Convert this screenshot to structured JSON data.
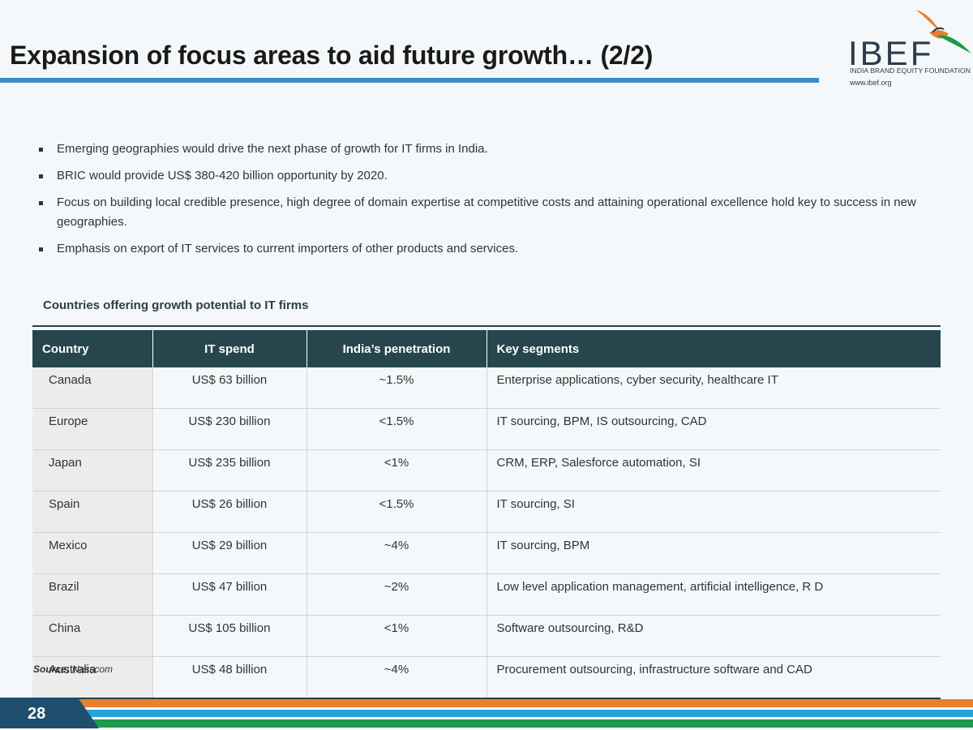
{
  "title": "Expansion of focus areas to aid future growth… (2/2)",
  "logo": {
    "name": "IBEF",
    "subtitle": "INDIA BRAND EQUITY FOUNDATION",
    "url": "www.ibef.org"
  },
  "bullets": [
    "Emerging geographies would drive the next phase of growth for IT firms in India.",
    "BRIC would provide US$ 380-420 billion opportunity by 2020.",
    "Focus on building local credible presence, high degree of domain expertise at competitive costs and attaining operational excellence hold key to success in new geographies.",
    "Emphasis on export of IT services to current importers of other products and services."
  ],
  "table": {
    "caption": "Countries offering growth potential to IT firms",
    "headers": [
      "Country",
      "IT spend",
      "India’s penetration",
      "Key segments"
    ],
    "rows": [
      [
        "Canada",
        "US$ 63 billion",
        "~1.5%",
        "Enterprise applications, cyber security, healthcare IT"
      ],
      [
        "Europe",
        "US$ 230 billion",
        "<1.5%",
        "IT sourcing, BPM, IS outsourcing, CAD"
      ],
      [
        "Japan",
        "US$ 235 billion",
        "<1%",
        "CRM, ERP, Salesforce automation, SI"
      ],
      [
        "Spain",
        "US$ 26 billion",
        "<1.5%",
        "IT sourcing, SI"
      ],
      [
        "Mexico",
        "US$ 29 billion",
        "~4%",
        "IT sourcing, BPM"
      ],
      [
        "Brazil",
        "US$ 47 billion",
        "~2%",
        "Low level application management, artificial intelligence, R D"
      ],
      [
        "China",
        "US$ 105 billion",
        "<1%",
        "Software outsourcing, R&D"
      ],
      [
        "Australia",
        "US$ 48 billion",
        "~4%",
        "Procurement outsourcing, infrastructure software and CAD"
      ]
    ]
  },
  "source": {
    "label": "Source:",
    "value": "Nasscom"
  },
  "page_number": "28",
  "colors": {
    "title_bar": "#3f8bc8",
    "table_header": "#27454d",
    "footer_orange": "#e8812c",
    "footer_blue": "#2aa3dc",
    "footer_green": "#1d9a4a",
    "page_tab": "#1f4f6f"
  }
}
